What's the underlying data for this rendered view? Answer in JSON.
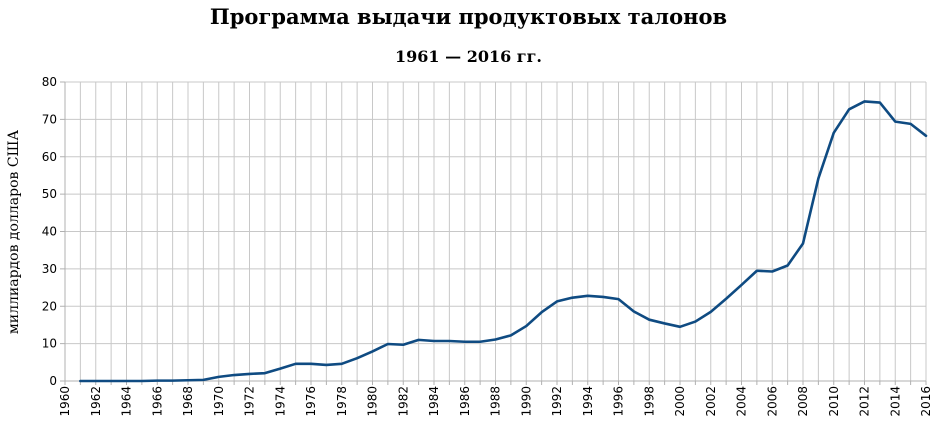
{
  "chart_data": {
    "type": "line",
    "title": "Программа выдачи продуктовых талонов",
    "subtitle": "1961 — 2016 гг.",
    "xlabel": "",
    "ylabel": "миллиардов долларов США",
    "xlim": [
      1960,
      2016
    ],
    "ylim": [
      0,
      80
    ],
    "x_ticks": [
      "1960",
      "1962",
      "1964",
      "1966",
      "1968",
      "1970",
      "1972",
      "1974",
      "1976",
      "1978",
      "1980",
      "1982",
      "1984",
      "1986",
      "1988",
      "1990",
      "1992",
      "1994",
      "1996",
      "1998",
      "2000",
      "2002",
      "2004",
      "2006",
      "2008",
      "2010",
      "2012",
      "2014",
      "2016"
    ],
    "y_ticks": [
      "0",
      "10",
      "20",
      "30",
      "40",
      "50",
      "60",
      "70",
      "80"
    ],
    "grid": true,
    "legend": "none",
    "line_color": "#0f4b82",
    "series": [
      {
        "x": [
          1961,
          1962,
          1963,
          1964,
          1965,
          1966,
          1967,
          1968,
          1969,
          1970,
          1971,
          1972,
          1973,
          1974,
          1975,
          1976,
          1977,
          1978,
          1979,
          1980,
          1981,
          1982,
          1983,
          1984,
          1985,
          1986,
          1987,
          1988,
          1989,
          1990,
          1991,
          1992,
          1993,
          1994,
          1995,
          1996,
          1997,
          1998,
          1999,
          2000,
          2001,
          2002,
          2003,
          2004,
          2005,
          2006,
          2007,
          2008,
          2009,
          2010,
          2011,
          2012,
          2013,
          2014,
          2015,
          2016
        ],
        "values": [
          0.0,
          0.0,
          0.0,
          0.0,
          0.0,
          0.1,
          0.1,
          0.2,
          0.3,
          1.1,
          1.6,
          1.9,
          2.1,
          3.3,
          4.6,
          4.6,
          4.3,
          4.6,
          6.1,
          7.9,
          9.9,
          9.7,
          11.0,
          10.7,
          10.7,
          10.5,
          10.5,
          11.1,
          12.2,
          14.7,
          18.4,
          21.3,
          22.3,
          22.8,
          22.5,
          21.9,
          18.6,
          16.4,
          15.4,
          14.5,
          15.9,
          18.5,
          22.0,
          25.7,
          29.5,
          29.3,
          30.9,
          36.8,
          54.2,
          66.4,
          72.7,
          74.8,
          74.5,
          69.4,
          68.8,
          65.6
        ]
      }
    ]
  }
}
